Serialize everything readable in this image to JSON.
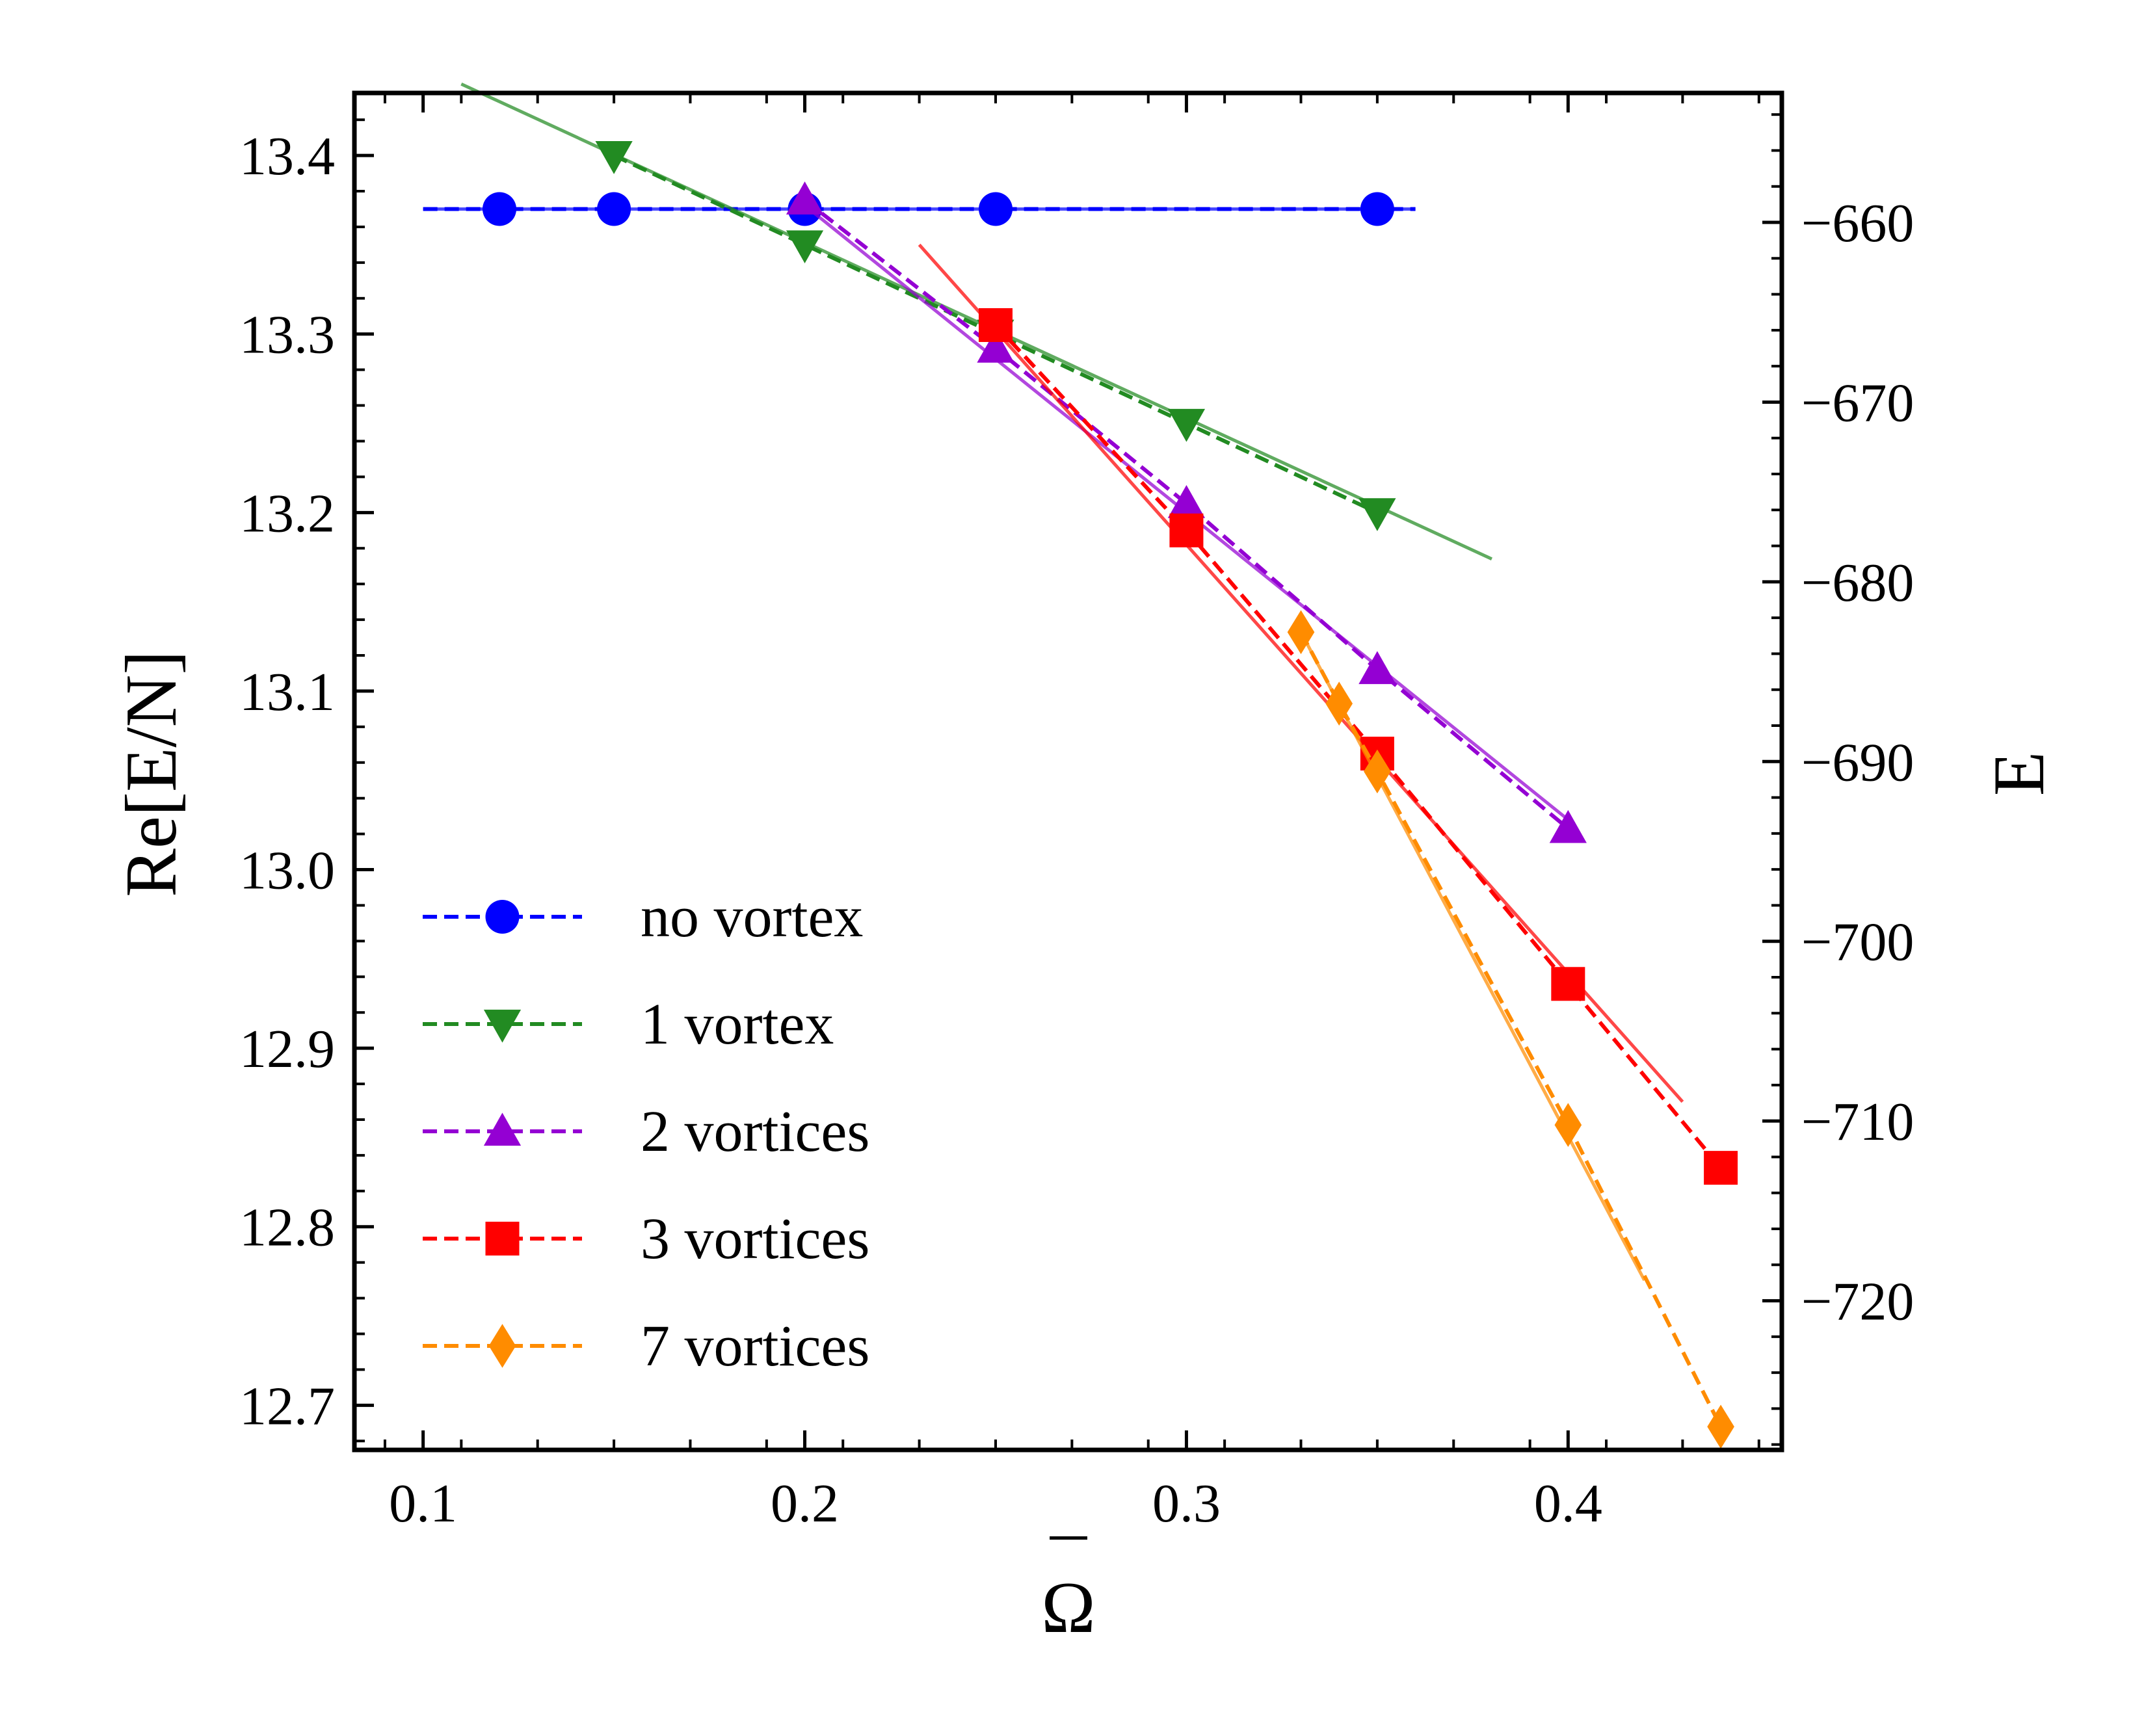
{
  "chart_data": {
    "type": "line",
    "title": "",
    "xlabel": "Ω",
    "xlabel_accent": "¯",
    "ylabel": "Re[E/N]",
    "ylabel_right": "E",
    "xlim": [
      0.082,
      0.456
    ],
    "ylim": [
      12.675,
      13.435
    ],
    "ylim_right": [
      -728.3,
      -652.8
    ],
    "xticks": [
      0.1,
      0.2,
      0.3,
      0.4
    ],
    "xtick_labels": [
      "0.1",
      "0.2",
      "0.3",
      "0.4"
    ],
    "yticks": [
      12.7,
      12.8,
      12.9,
      13.0,
      13.1,
      13.2,
      13.3,
      13.4
    ],
    "ytick_labels": [
      "12.7",
      "12.8",
      "12.9",
      "13.0",
      "13.1",
      "13.2",
      "13.3",
      "13.4"
    ],
    "yticks_right": [
      -720,
      -710,
      -700,
      -690,
      -680,
      -670,
      -660
    ],
    "ytick_labels_right": [
      "−720",
      "−710",
      "−700",
      "−690",
      "−680",
      "−670",
      "−660"
    ],
    "grid": false,
    "legend_position": "lower-left",
    "series": [
      {
        "name": "no vortex",
        "color": "#0000ff",
        "marker": "circle",
        "x": [
          0.12,
          0.15,
          0.2,
          0.25,
          0.35
        ],
        "y": [
          13.37,
          13.37,
          13.37,
          13.37,
          13.37
        ],
        "dashed_fit": [
          [
            0.1,
            13.37
          ],
          [
            0.36,
            13.37
          ]
        ],
        "solid_fit": [
          [
            0.1,
            13.37
          ],
          [
            0.36,
            13.37
          ]
        ]
      },
      {
        "name": "1 vortex",
        "color": "#228b22",
        "marker": "triangle-down",
        "x": [
          0.15,
          0.2,
          0.25,
          0.3,
          0.35
        ],
        "y": [
          13.4,
          13.35,
          13.3,
          13.25,
          13.2
        ],
        "dashed_fit": [
          [
            0.15,
            13.4
          ],
          [
            0.2,
            13.35
          ],
          [
            0.25,
            13.3
          ],
          [
            0.3,
            13.25
          ],
          [
            0.35,
            13.2
          ]
        ],
        "solid_fit": [
          [
            0.11,
            13.44
          ],
          [
            0.38,
            13.174
          ]
        ]
      },
      {
        "name": "2 vortices",
        "color": "#9400d3",
        "marker": "triangle-up",
        "x": [
          0.2,
          0.25,
          0.3,
          0.35,
          0.4
        ],
        "y": [
          13.375,
          13.292,
          13.205,
          13.112,
          13.023
        ],
        "dashed_fit": [
          [
            0.2,
            13.375
          ],
          [
            0.25,
            13.292
          ],
          [
            0.3,
            13.205
          ],
          [
            0.35,
            13.112
          ],
          [
            0.4,
            13.023
          ]
        ],
        "solid_fit": [
          [
            0.2,
            13.372
          ],
          [
            0.4,
            13.028
          ]
        ]
      },
      {
        "name": "3 vortices",
        "color": "#ff0000",
        "marker": "square",
        "x": [
          0.25,
          0.3,
          0.35,
          0.4,
          0.44
        ],
        "y": [
          13.305,
          13.19,
          13.065,
          12.936,
          12.833
        ],
        "dashed_fit": [
          [
            0.25,
            13.305
          ],
          [
            0.3,
            13.19
          ],
          [
            0.35,
            13.065
          ],
          [
            0.4,
            12.936
          ],
          [
            0.44,
            12.833
          ]
        ],
        "solid_fit": [
          [
            0.23,
            13.35
          ],
          [
            0.43,
            12.87
          ]
        ]
      },
      {
        "name": "7 vortices",
        "color": "#ff8c00",
        "marker": "diamond",
        "x": [
          0.33,
          0.34,
          0.35,
          0.4,
          0.44
        ],
        "y": [
          13.133,
          13.093,
          13.055,
          12.857,
          12.688
        ],
        "dashed_fit": [
          [
            0.33,
            13.133
          ],
          [
            0.34,
            13.093
          ],
          [
            0.35,
            13.055
          ],
          [
            0.4,
            12.857
          ],
          [
            0.44,
            12.688
          ]
        ],
        "solid_fit": [
          [
            0.33,
            13.133
          ],
          [
            0.42,
            12.77
          ]
        ]
      }
    ]
  }
}
